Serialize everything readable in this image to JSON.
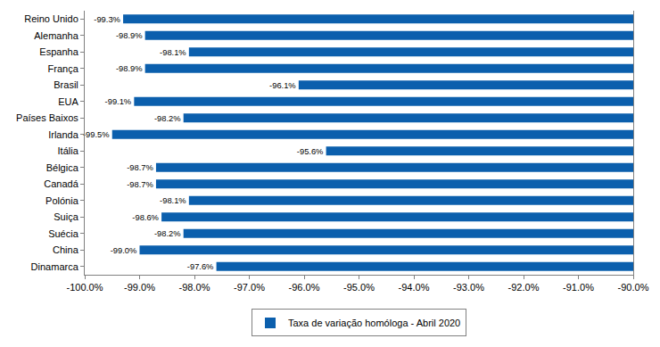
{
  "chart_data": {
    "type": "bar",
    "orientation": "horizontal",
    "categories": [
      "Reino Unido",
      "Alemanha",
      "Espanha",
      "França",
      "Brasil",
      "EUA",
      "Países Baixos",
      "Irlanda",
      "Itália",
      "Bélgica",
      "Canadá",
      "Polónia",
      "Suiça",
      "Suécia",
      "China",
      "Dinamarca"
    ],
    "series": [
      {
        "name": "Taxa de variação homóloga - Abril 2020",
        "color": "#0b5fad",
        "values": [
          -99.3,
          -98.9,
          -98.1,
          -98.9,
          -96.1,
          -99.1,
          -98.2,
          -99.5,
          -95.6,
          -98.7,
          -98.7,
          -98.1,
          -98.6,
          -98.2,
          -99.0,
          -97.6
        ],
        "value_labels": [
          "-99.3%",
          "-98.9%",
          "-98.1%",
          "-98.9%",
          "-96.1%",
          "-99.1%",
          "-98.2%",
          "-99.5%",
          "-95.6%",
          "-98.7%",
          "-98.7%",
          "-98.1%",
          "-98.6%",
          "-98.2%",
          "-99.0%",
          "-97.6%"
        ]
      }
    ],
    "xlim": [
      -100,
      -90
    ],
    "xticks": [
      {
        "value": -100,
        "label": "-100.0%"
      },
      {
        "value": -99,
        "label": "-99.0%"
      },
      {
        "value": -98,
        "label": "-98.0%"
      },
      {
        "value": -97,
        "label": "-97.0%"
      },
      {
        "value": -96,
        "label": "-96.0%"
      },
      {
        "value": -95,
        "label": "-95.0%"
      },
      {
        "value": -94,
        "label": "-94.0%"
      },
      {
        "value": -93,
        "label": "-93.0%"
      },
      {
        "value": -92,
        "label": "-92.0%"
      },
      {
        "value": -91,
        "label": "-91.0%"
      },
      {
        "value": -90,
        "label": "-90.0%"
      }
    ],
    "grid": false,
    "legend": "bottom",
    "data_labels": true
  }
}
